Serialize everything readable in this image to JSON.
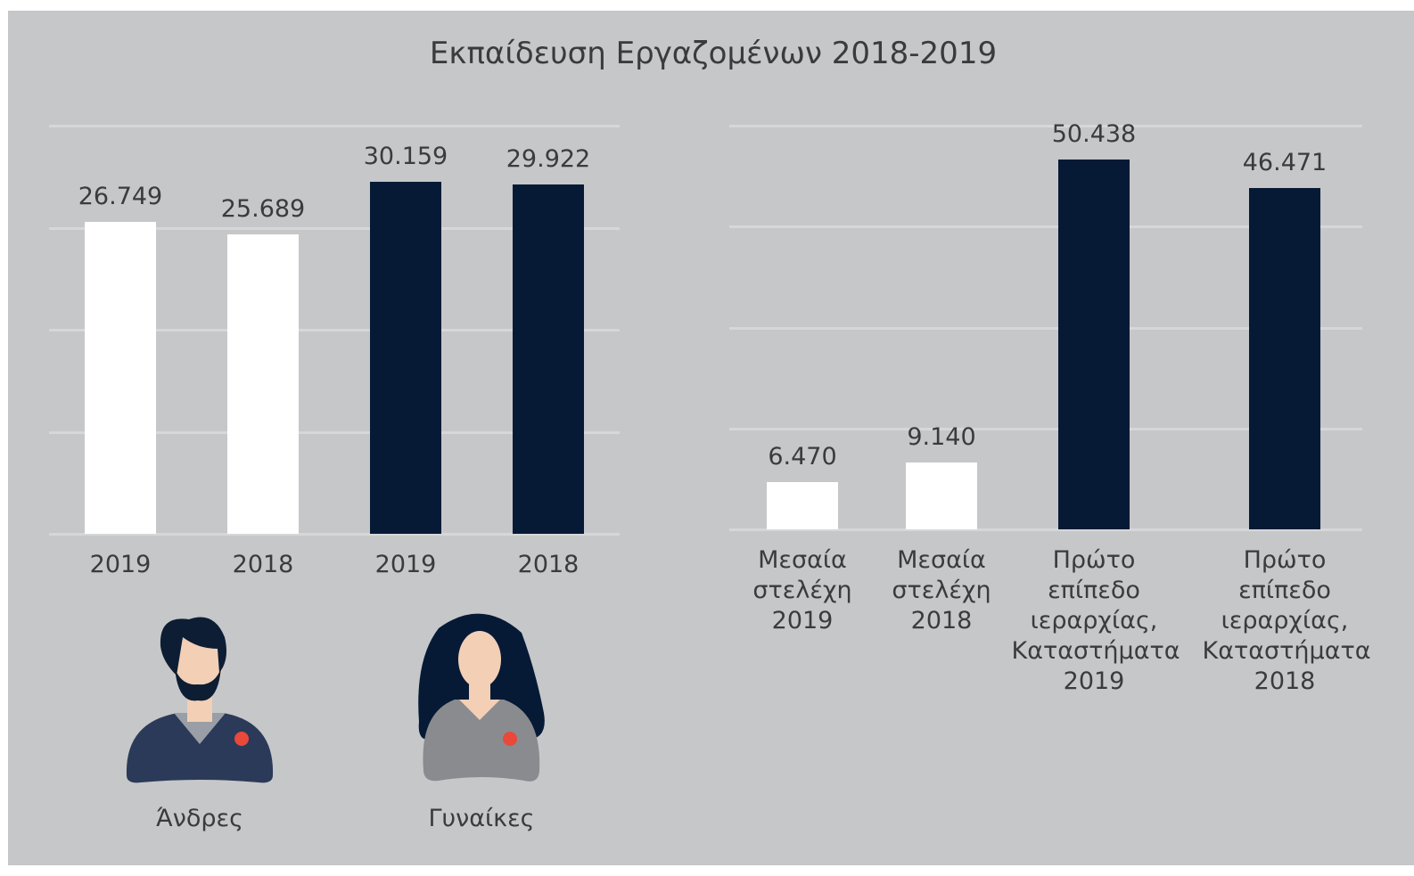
{
  "title": "Εκπαίδευση Εργαζομένων 2018-2019",
  "figures": [
    "Άνδρες",
    "Γυναίκες"
  ],
  "chart_data": [
    {
      "type": "bar",
      "categories": [
        "2019",
        "2018",
        "2019",
        "2018"
      ],
      "values": [
        26749,
        25689,
        30159,
        29922
      ],
      "value_labels": [
        "26.749",
        "25.689",
        "30.159",
        "29.922"
      ],
      "colors": [
        "#ffffff",
        "#ffffff",
        "#061a36",
        "#061a36"
      ],
      "ylim": [
        0,
        35000
      ],
      "grid": true
    },
    {
      "type": "bar",
      "categories": [
        "Μεσαία στελέχη 2019",
        "Μεσαία στελέχη 2018",
        "Πρώτο επίπεδο ιεραρχίας, Καταστήματα 2019",
        "Πρώτο επίπεδο ιεραρχίας, Καταστήματα 2018"
      ],
      "values": [
        6470,
        9140,
        50438,
        46471
      ],
      "value_labels": [
        "6.470",
        "9.140",
        "50.438",
        "46.471"
      ],
      "colors": [
        "#ffffff",
        "#ffffff",
        "#061a36",
        "#061a36"
      ],
      "ylim": [
        0,
        55000
      ],
      "grid": true
    }
  ]
}
